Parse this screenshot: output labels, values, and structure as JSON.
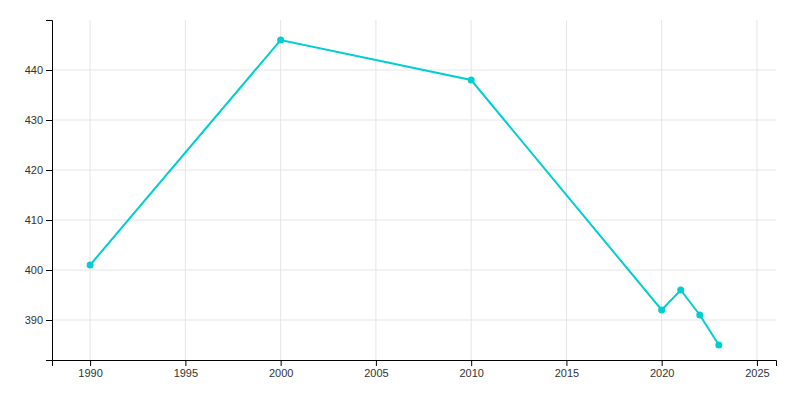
{
  "chart_data": {
    "type": "line",
    "x": [
      1990,
      2000,
      2010,
      2020,
      2021,
      2022,
      2023
    ],
    "values": [
      401,
      446,
      438,
      392,
      396,
      391,
      385
    ],
    "color": "#00CED1",
    "marker": "circle",
    "xlim": [
      1988,
      2026
    ],
    "ylim": [
      382,
      450
    ],
    "xticks": [
      1990,
      1995,
      2000,
      2005,
      2010,
      2015,
      2020,
      2025
    ],
    "yticks": [
      390,
      400,
      410,
      420,
      430,
      440
    ],
    "grid": true
  }
}
